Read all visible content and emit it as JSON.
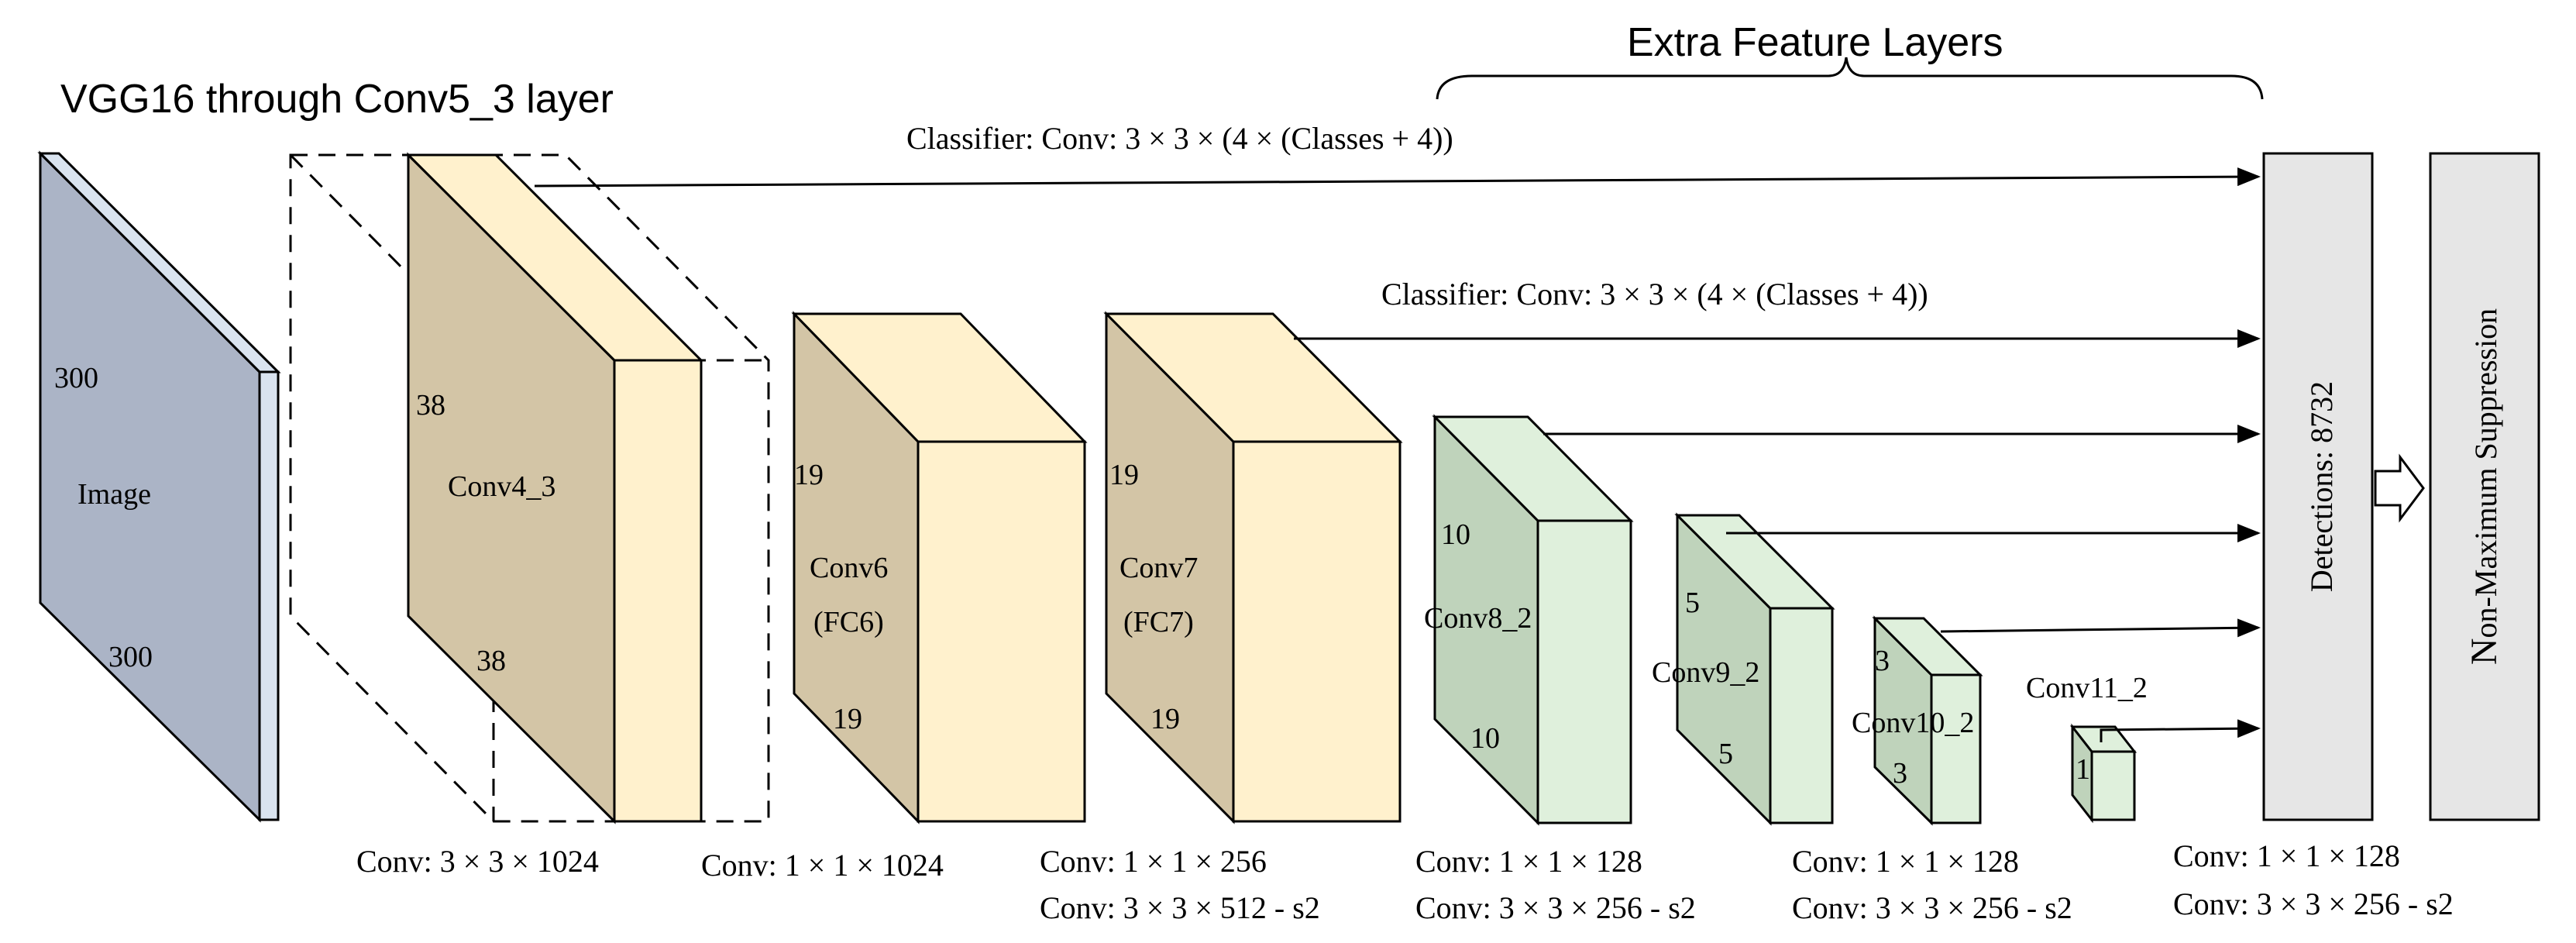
{
  "header": {
    "extra_title": "Extra Feature Layers",
    "vgg_title": "VGG16 through Conv5_3 layer"
  },
  "classifiers": {
    "top": "Classifier:  Conv: 3 × 3 × (4 × (Classes + 4))",
    "second": "Classifier:  Conv: 3 × 3 × (4 × (Classes + 4))"
  },
  "image_block": {
    "label": "Image",
    "size_top": "300",
    "size_bottom": "300"
  },
  "conv4": {
    "label": "Conv4_3",
    "size_a": "38",
    "size_b": "38"
  },
  "conv6": {
    "label_1": "Conv6",
    "label_2": "(FC6)",
    "size_a": "19",
    "size_b": "19"
  },
  "conv7": {
    "label_1": "Conv7",
    "label_2": "(FC7)",
    "size_a": "19",
    "size_b": "19"
  },
  "conv8": {
    "label": "Conv8_2",
    "size_a": "10",
    "size_b": "10"
  },
  "conv9": {
    "label": "Conv9_2",
    "size_a": "5",
    "size_b": "5"
  },
  "conv10": {
    "label": "Conv10_2",
    "size_a": "3",
    "size_b": "3"
  },
  "conv11": {
    "label": "Conv11_2",
    "size_a": "1"
  },
  "detections": "Detections:  8732",
  "nms": {
    "lead": "N",
    "rest": "on-Maximum  Suppression"
  },
  "captions": {
    "c1": "Conv: 3 × 3 × 1024",
    "c2": "Conv: 1 × 1 × 1024",
    "c3a": "Conv: 1 × 1 × 256",
    "c3b": "Conv: 3 × 3 × 512 - s2",
    "c4a": "Conv: 1 × 1 × 128",
    "c4b": "Conv: 3 × 3 × 256 - s2",
    "c5a": "Conv: 1 × 1 × 128",
    "c5b": "Conv: 3 × 3 × 256 - s2",
    "c6a": "Conv: 1 × 1 × 128",
    "c6b": "Conv: 3 × 3 × 256 - s2"
  },
  "colors": {
    "image_face": "#abb4c6",
    "image_side": "#d9e3ef",
    "tan_face": "#d3c5a6",
    "tan_side": "#fff1cd",
    "green_face": "#bfd3bb",
    "green_side": "#dff0dc",
    "box_fill": "#e6e6e6"
  }
}
